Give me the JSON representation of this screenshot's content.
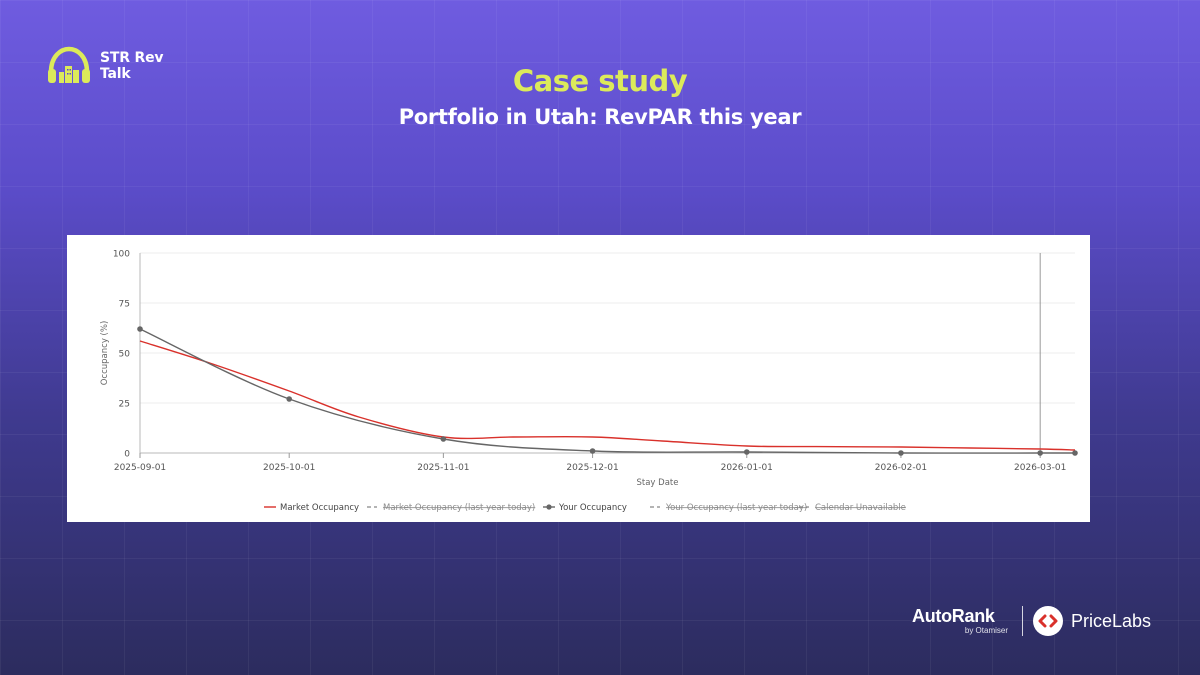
{
  "brand": {
    "line1": "STR Rev",
    "line2": "Talk",
    "logo_icon": "headphones-city-icon",
    "accent_color": "#dcea5a"
  },
  "header": {
    "title": "Case study",
    "subtitle": "Portfolio in Utah: RevPAR this year"
  },
  "chart_data": {
    "type": "line",
    "title": "",
    "xlabel": "Stay Date",
    "ylabel": "Occupancy (%)",
    "ylim": [
      0,
      100
    ],
    "yticks": [
      0,
      25,
      50,
      75,
      100
    ],
    "xlim": [
      "2025-09-01",
      "2026-03-08"
    ],
    "xticks": [
      "2025-09-01",
      "2025-10-01",
      "2025-11-01",
      "2025-12-01",
      "2026-01-01",
      "2026-02-01",
      "2026-03-01"
    ],
    "grid": true,
    "vertical_marker": "2026-03-01",
    "legend_position": "bottom",
    "series": [
      {
        "name": "Market Occupancy",
        "color": "#d9312b",
        "markers": false,
        "active": true,
        "points": [
          [
            "2025-09-01",
            56
          ],
          [
            "2025-09-15",
            45
          ],
          [
            "2025-10-01",
            31
          ],
          [
            "2025-10-15",
            18
          ],
          [
            "2025-11-01",
            8
          ],
          [
            "2025-11-15",
            8
          ],
          [
            "2025-12-01",
            8
          ],
          [
            "2025-12-15",
            6
          ],
          [
            "2026-01-01",
            3.5
          ],
          [
            "2026-01-15",
            3.2
          ],
          [
            "2026-02-01",
            3
          ],
          [
            "2026-02-15",
            2.5
          ],
          [
            "2026-03-01",
            2
          ],
          [
            "2026-03-08",
            1.5
          ]
        ]
      },
      {
        "name": "Market Occupancy (last year today)",
        "color": "#888888",
        "active": false,
        "points": []
      },
      {
        "name": "Your Occupancy",
        "color": "#666666",
        "markers": true,
        "active": true,
        "points": [
          [
            "2025-09-01",
            62
          ],
          [
            "2025-10-01",
            27
          ],
          [
            "2025-11-01",
            7
          ],
          [
            "2025-12-01",
            1
          ],
          [
            "2026-01-01",
            0.5
          ],
          [
            "2026-02-01",
            0
          ],
          [
            "2026-03-01",
            0
          ],
          [
            "2026-03-08",
            0
          ]
        ]
      },
      {
        "name": "Your Occupancy (last year today)",
        "color": "#888888",
        "active": false,
        "points": []
      },
      {
        "name": "Calendar Unavailable",
        "color": "#888888",
        "active": false,
        "points": []
      }
    ]
  },
  "footer": {
    "autorank_name": "AutoRank",
    "autorank_by": "by Otamiser",
    "pricelabs_name": "PriceLabs",
    "pricelabs_icon": "pricelabs-chevrons-icon"
  }
}
